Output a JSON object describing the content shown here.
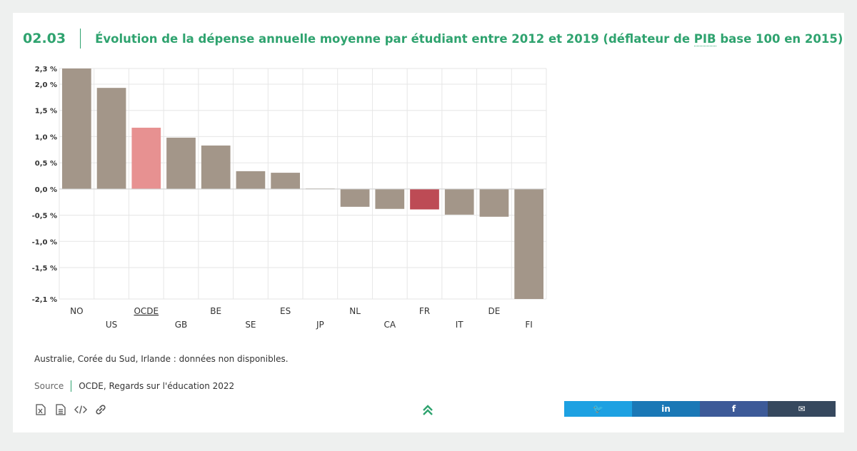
{
  "header": {
    "number": "02.03",
    "title_before": "Évolution de la dépense annuelle moyenne par étudiant entre 2012 et 2019 (déflateur de ",
    "title_abbr": "PIB",
    "title_after": " base 100 en 2015)"
  },
  "chart_data": {
    "type": "bar",
    "title": "",
    "xlabel": "",
    "ylabel": "",
    "ylim": [
      -2.1,
      2.3
    ],
    "yticks": [
      "2,3 %",
      "2,0 %",
      "1,5 %",
      "1,0 %",
      "0,5 %",
      "0,0 %",
      "-0,5 %",
      "-1,0 %",
      "-1,5 %",
      "-2,1 %"
    ],
    "ytick_values": [
      2.3,
      2.0,
      1.5,
      1.0,
      0.5,
      0.0,
      -0.5,
      -1.0,
      -1.5,
      -2.1
    ],
    "categories": [
      "NO",
      "US",
      "OCDE",
      "GB",
      "BE",
      "SE",
      "ES",
      "JP",
      "NL",
      "CA",
      "FR",
      "IT",
      "DE",
      "FI"
    ],
    "values": [
      2.3,
      1.93,
      1.17,
      0.98,
      0.83,
      0.34,
      0.31,
      0.01,
      -0.34,
      -0.38,
      -0.39,
      -0.49,
      -0.53,
      -2.1
    ],
    "colors": {
      "default": "#a39689",
      "OCDE": "#e79191",
      "FR": "#bd4b55"
    },
    "grid": true,
    "legend": "none"
  },
  "note": "Australie, Corée du Sud, Irlande : données non disponibles.",
  "source": {
    "label": "Source",
    "text": "OCDE, Regards sur l'éducation 2022"
  },
  "tools": [
    {
      "name": "excel-icon"
    },
    {
      "name": "document-icon"
    },
    {
      "name": "code-icon"
    },
    {
      "name": "link-icon"
    }
  ],
  "share": [
    {
      "name": "twitter",
      "label": "🐦",
      "color": "#1da1e2"
    },
    {
      "name": "linkedin",
      "label": "in",
      "color": "#1a78b6"
    },
    {
      "name": "facebook",
      "label": "f",
      "color": "#3d5a98"
    },
    {
      "name": "email",
      "label": "✉",
      "color": "#36485e"
    }
  ]
}
